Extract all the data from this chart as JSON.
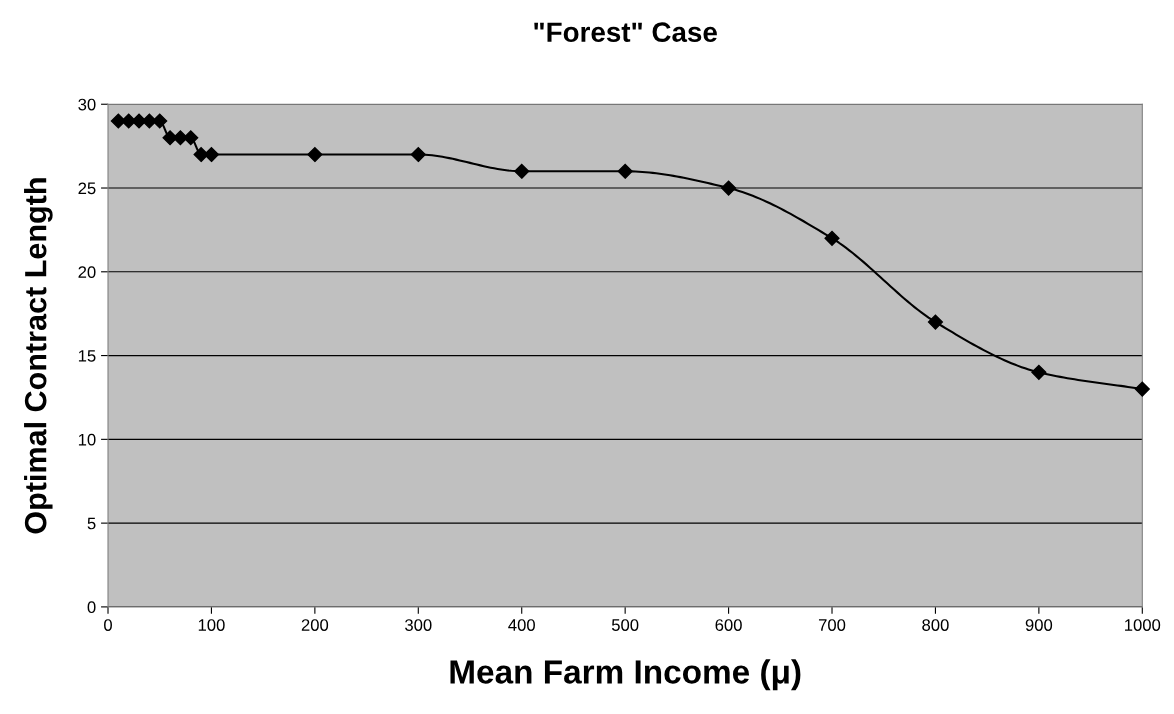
{
  "chart_data": {
    "type": "line",
    "title": "\"Forest\" Case",
    "xlabel": "Mean Farm Income (μ)",
    "ylabel": "Optimal Contract Length",
    "x": [
      10,
      20,
      30,
      40,
      50,
      60,
      70,
      80,
      90,
      100,
      200,
      300,
      400,
      500,
      600,
      700,
      800,
      900,
      1000
    ],
    "series": [
      {
        "color": "#000000",
        "values": [
          29,
          29,
          29,
          29,
          29,
          28,
          28,
          28,
          27,
          27,
          27,
          27,
          26,
          26,
          25,
          22,
          17,
          14,
          13
        ]
      }
    ],
    "xlim": [
      0,
      1000
    ],
    "xticks": [
      0,
      100,
      200,
      300,
      400,
      500,
      600,
      700,
      800,
      900,
      1000
    ],
    "ylim": [
      0,
      30
    ],
    "yticks": [
      0,
      5,
      10,
      15,
      20,
      25,
      30
    ],
    "grid": "y",
    "marker": "diamond",
    "line_style": "solid"
  }
}
